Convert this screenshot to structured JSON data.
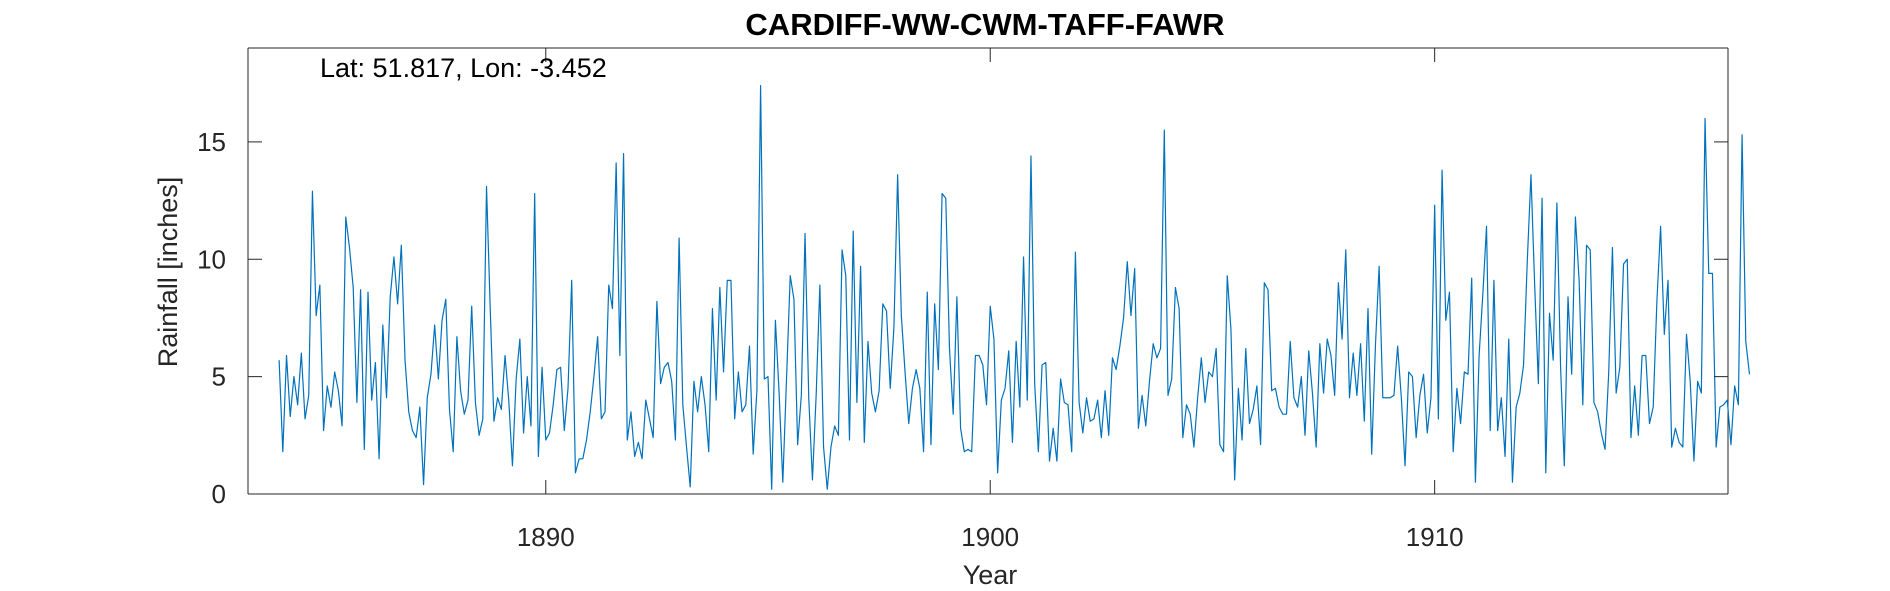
{
  "chart_data": {
    "type": "line",
    "title": "CARDIFF-WW-CWM-TAFF-FAWR",
    "annotation": "Lat: 51.817, Lon: -3.452",
    "xlabel": "Year",
    "ylabel": "Rainfall [inches]",
    "xlim": [
      1883.3,
      1916.6
    ],
    "ylim": [
      0,
      19
    ],
    "xticks": [
      1890,
      1900,
      1910
    ],
    "xtick_labels": [
      "1890",
      "1900",
      "1910"
    ],
    "yticks": [
      0,
      5,
      10,
      15
    ],
    "ytick_labels": [
      "0",
      "5",
      "10",
      "15"
    ],
    "grid": false,
    "x_start": 1884.0,
    "x_step_months": 1,
    "colors": {
      "line": "#0072BD",
      "axes": "#262626"
    },
    "series": [
      {
        "values": [
          5.7,
          1.8,
          5.9,
          3.3,
          5.0,
          3.8,
          6.0,
          3.2,
          4.2,
          12.9,
          7.6,
          8.9,
          2.7,
          4.6,
          3.7,
          5.2,
          4.4,
          2.9,
          11.8,
          10.5,
          8.8,
          3.9,
          8.7,
          1.9,
          8.6,
          4.0,
          5.6,
          1.5,
          7.2,
          4.1,
          8.4,
          10.1,
          8.1,
          10.6,
          5.7,
          3.5,
          2.7,
          2.4,
          3.7,
          0.4,
          4.1,
          5.1,
          7.2,
          4.9,
          7.4,
          8.3,
          3.6,
          1.8,
          6.7,
          4.4,
          3.4,
          4.0,
          8.0,
          3.9,
          2.5,
          3.2,
          13.1,
          7.9,
          3.1,
          4.1,
          3.6,
          5.9,
          4.0,
          1.2,
          4.9,
          6.6,
          2.6,
          5.0,
          2.9,
          12.8,
          1.6,
          5.4,
          2.3,
          2.6,
          3.8,
          5.3,
          5.4,
          2.7,
          4.5,
          9.1,
          0.9,
          1.5,
          1.5,
          2.3,
          3.5,
          5.0,
          6.7,
          3.2,
          3.5,
          8.9,
          7.9,
          14.1,
          5.9,
          14.5,
          2.3,
          3.5,
          1.6,
          2.2,
          1.5,
          4.0,
          3.2,
          2.4,
          8.2,
          4.7,
          5.4,
          5.6,
          4.8,
          2.3,
          10.9,
          3.8,
          2.0,
          0.3,
          4.8,
          3.5,
          5.0,
          3.8,
          1.8,
          7.9,
          4.0,
          8.8,
          5.2,
          9.1,
          9.1,
          3.2,
          5.2,
          3.5,
          3.8,
          6.3,
          1.7,
          4.4,
          17.4,
          4.9,
          5.0,
          0.2,
          7.4,
          4.3,
          0.5,
          4.9,
          9.3,
          8.3,
          2.1,
          4.2,
          11.1,
          4.1,
          0.6,
          4.2,
          8.9,
          2.0,
          0.2,
          2.0,
          2.9,
          2.5,
          10.4,
          9.3,
          2.3,
          11.2,
          3.9,
          9.7,
          2.2,
          6.5,
          4.3,
          3.5,
          4.4,
          8.1,
          7.8,
          4.5,
          7.1,
          13.6,
          7.6,
          5.2,
          3.0,
          4.5,
          5.3,
          4.5,
          1.8,
          8.6,
          2.1,
          8.1,
          5.3,
          12.8,
          12.6,
          6.2,
          3.4,
          8.4,
          2.8,
          1.8,
          1.9,
          1.8,
          5.9,
          5.9,
          5.5,
          3.8,
          8.0,
          6.6,
          0.9,
          4.0,
          4.5,
          6.1,
          2.2,
          6.5,
          3.7,
          10.1,
          4.0,
          14.4,
          4.7,
          1.8,
          5.5,
          5.6,
          1.4,
          2.8,
          1.4,
          4.9,
          3.9,
          3.8,
          1.8,
          10.3,
          3.9,
          2.6,
          4.1,
          3.1,
          3.2,
          4.0,
          2.4,
          4.4,
          2.5,
          5.8,
          5.3,
          6.3,
          7.5,
          9.9,
          7.6,
          9.6,
          2.8,
          4.2,
          2.9,
          4.8,
          6.4,
          5.8,
          6.2,
          15.5,
          4.2,
          4.9,
          8.8,
          7.9,
          2.4,
          3.8,
          3.4,
          2.0,
          4.1,
          5.8,
          3.9,
          5.2,
          5.0,
          6.2,
          2.1,
          1.8,
          9.3,
          7.0,
          0.6,
          4.5,
          2.3,
          6.2,
          3.0,
          3.6,
          4.6,
          2.1,
          9.0,
          8.7,
          4.4,
          4.5,
          3.7,
          3.4,
          3.4,
          6.5,
          4.1,
          3.7,
          5.0,
          2.5,
          6.1,
          4.3,
          2.0,
          6.4,
          4.3,
          6.6,
          5.9,
          4.2,
          9.0,
          6.6,
          10.4,
          4.1,
          6.0,
          4.2,
          6.4,
          3.1,
          7.9,
          1.7,
          6.3,
          9.7,
          4.1,
          4.1,
          4.1,
          4.2,
          6.3,
          4.1,
          1.2,
          5.2,
          5.0,
          2.4,
          4.2,
          5.1,
          2.6,
          4.1,
          12.3,
          3.2,
          13.8,
          7.4,
          8.6,
          1.8,
          4.5,
          3.0,
          5.2,
          5.1,
          9.2,
          0.5,
          5.9,
          8.5,
          11.4,
          2.7,
          9.1,
          2.7,
          4.1,
          1.6,
          6.6,
          0.5,
          3.7,
          4.3,
          5.5,
          9.9,
          13.6,
          8.9,
          4.7,
          12.6,
          0.9,
          7.7,
          5.7,
          12.4,
          5.4,
          1.2,
          8.4,
          5.1,
          11.8,
          9.1,
          3.8,
          10.6,
          10.4,
          3.9,
          3.5,
          2.6,
          1.9,
          5.2,
          10.5,
          4.3,
          5.4,
          9.8,
          10.0,
          2.4,
          4.6,
          2.5,
          5.9,
          5.9,
          3.0,
          3.7,
          8.2,
          11.4,
          6.8,
          9.1,
          2.0,
          2.8,
          2.2,
          2.0,
          6.8,
          4.8,
          1.4,
          4.8,
          4.3,
          16.0,
          9.4,
          9.4,
          2.0,
          3.7,
          3.8,
          4.0,
          2.1,
          4.6,
          3.8,
          15.3,
          6.5,
          5.1
        ]
      }
    ]
  }
}
